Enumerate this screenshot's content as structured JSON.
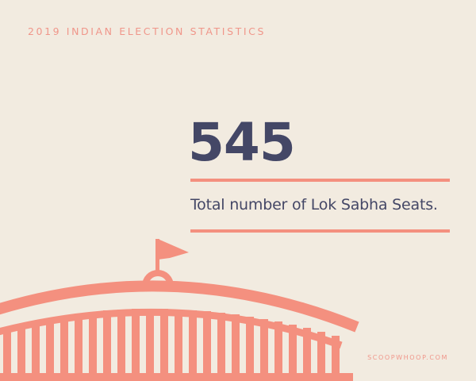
{
  "header": {
    "title": "2019 INDIAN ELECTION STATISTICS"
  },
  "stat": {
    "value": "545",
    "caption": "Total number of Lok Sabha Seats."
  },
  "footer": {
    "brand": "SCOOPWHOOP.COM"
  },
  "illustration": {
    "icon": "parliament-building-icon",
    "flag_icon": "flag-icon"
  },
  "colors": {
    "background": "#f2ebe0",
    "accent": "#f4907f",
    "text_dark": "#444766"
  }
}
